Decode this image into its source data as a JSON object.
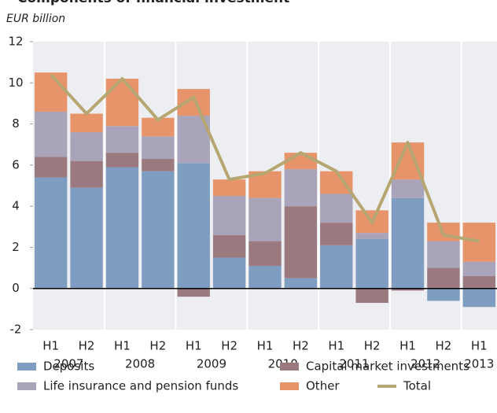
{
  "chart_data": {
    "type": "stacked_bar_line",
    "title": "Components of financial investment",
    "subtitle": "EUR billion",
    "categories": [
      "H1",
      "H2",
      "H1",
      "H2",
      "H1",
      "H2",
      "H1",
      "H2",
      "H1",
      "H2",
      "H1",
      "H2",
      "H1"
    ],
    "groups": [
      "2007",
      "2008",
      "2009",
      "2010",
      "2011",
      "2012",
      "2013"
    ],
    "series": [
      {
        "name": "Deposits",
        "color": "#7f9dc0",
        "values": [
          5.4,
          4.9,
          5.9,
          5.7,
          6.1,
          1.5,
          1.1,
          0.5,
          2.1,
          2.4,
          4.4,
          -0.6,
          -0.9
        ]
      },
      {
        "name": "Capital market investments",
        "color": "#9b7a7f",
        "values": [
          1.0,
          1.3,
          0.7,
          0.6,
          -0.4,
          1.1,
          1.2,
          3.5,
          1.1,
          -0.7,
          -0.1,
          1.0,
          0.6
        ]
      },
      {
        "name": "Life insurance and pension funds",
        "color": "#a9a4b9",
        "values": [
          2.2,
          1.4,
          1.3,
          1.1,
          2.3,
          1.9,
          2.1,
          1.8,
          1.4,
          0.3,
          0.9,
          1.3,
          0.7
        ]
      },
      {
        "name": "Other",
        "color": "#e8946a",
        "values": [
          1.9,
          0.9,
          2.3,
          0.9,
          1.3,
          0.8,
          1.3,
          0.8,
          1.1,
          1.1,
          1.8,
          0.9,
          1.9
        ]
      },
      {
        "name": "Total",
        "color": "#b5a672",
        "kind": "line",
        "values": [
          10.4,
          8.5,
          10.2,
          8.2,
          9.3,
          5.3,
          5.6,
          6.6,
          5.7,
          3.2,
          7.1,
          2.6,
          2.3
        ]
      }
    ],
    "ylim": [
      -2,
      12
    ],
    "yticks": [
      -2,
      0,
      2,
      4,
      6,
      8,
      10,
      12
    ],
    "legend": "bottom"
  }
}
